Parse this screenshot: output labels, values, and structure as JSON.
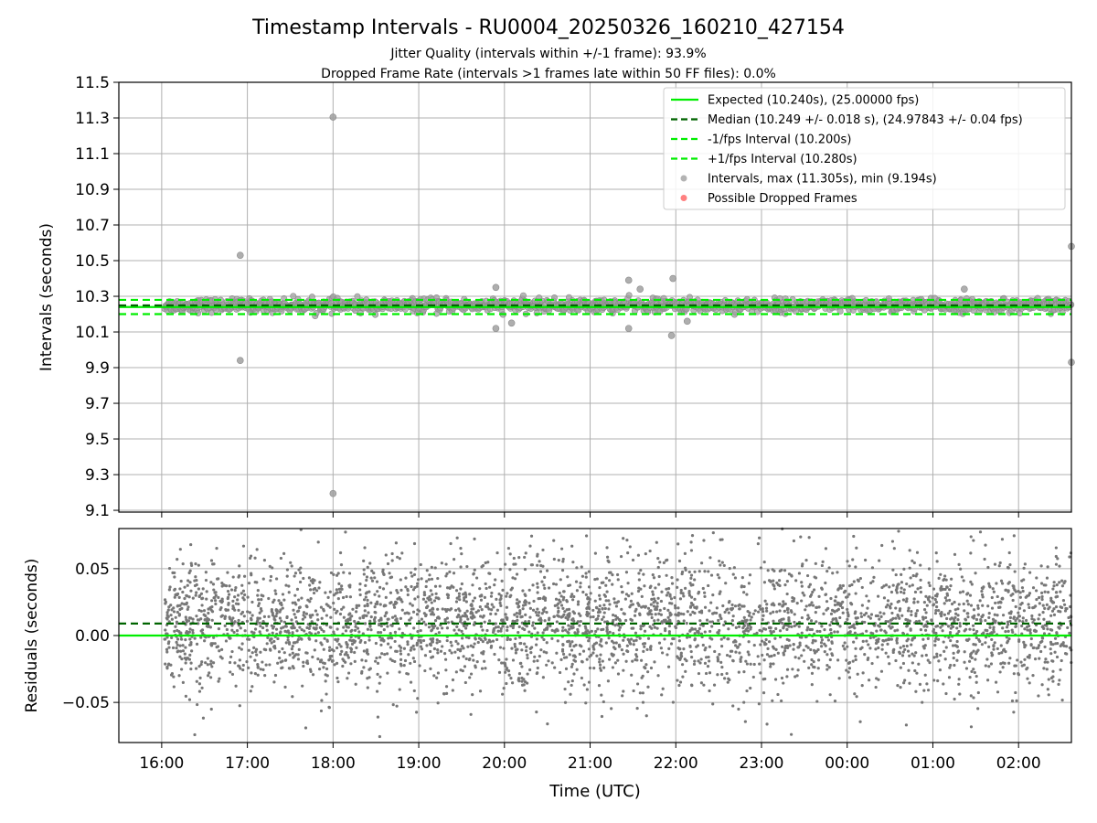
{
  "chart_data": [
    {
      "type": "scatter",
      "title": "Timestamp Intervals - RU0004_20250326_160210_427154",
      "subtitle_lines": [
        "Jitter Quality (intervals within +/-1 frame): 93.9%",
        "Dropped Frame Rate (intervals >1 frames late within 50 FF files): 0.0%"
      ],
      "ylabel": "Intervals (seconds)",
      "xlabel": "",
      "xlim": [
        "15:30",
        "02:37"
      ],
      "ylim": [
        9.09,
        11.5
      ],
      "yticks": [
        9.1,
        9.3,
        9.5,
        9.7,
        9.9,
        10.1,
        10.3,
        10.5,
        10.7,
        10.9,
        11.1,
        11.3,
        11.5
      ],
      "ytick_labels": [
        "9.1",
        "9.3",
        "9.5",
        "9.7",
        "9.9",
        "10.1",
        "10.3",
        "10.5",
        "10.7",
        "10.9",
        "11.1",
        "11.3",
        "11.5"
      ],
      "grid": true,
      "legend_position": "top-right",
      "reference_lines": [
        {
          "name": "Expected (10.240s), (25.00000 fps)",
          "value": 10.24,
          "color": "#00ee00",
          "style": "solid"
        },
        {
          "name": "Median (10.249 +/- 0.018 s), (24.97843 +/- 0.04 fps)",
          "value": 10.249,
          "color": "#006400",
          "style": "dashed"
        },
        {
          "name": "-1/fps Interval (10.200s)",
          "value": 10.2,
          "color": "#00ee00",
          "style": "dashed"
        },
        {
          "name": "+1/fps Interval (10.280s)",
          "value": 10.28,
          "color": "#00ee00",
          "style": "dashed"
        }
      ],
      "series": [
        {
          "name": "Intervals, max (11.305s), min (9.194s)",
          "color": "#a0a0a0",
          "max": 11.305,
          "min": 9.194,
          "typical_range": [
            10.2,
            10.3
          ],
          "outliers": [
            {
              "x": "16:55",
              "y": 10.53
            },
            {
              "x": "16:55",
              "y": 9.94
            },
            {
              "x": "18:00",
              "y": 11.305
            },
            {
              "x": "18:00",
              "y": 9.194
            },
            {
              "x": "19:54",
              "y": 10.35
            },
            {
              "x": "19:54",
              "y": 10.12
            },
            {
              "x": "20:05",
              "y": 10.15
            },
            {
              "x": "21:27",
              "y": 10.39
            },
            {
              "x": "21:27",
              "y": 10.12
            },
            {
              "x": "21:35",
              "y": 10.34
            },
            {
              "x": "21:58",
              "y": 10.4
            },
            {
              "x": "21:57",
              "y": 10.08
            },
            {
              "x": "22:08",
              "y": 10.16
            },
            {
              "x": "01:22",
              "y": 10.34
            },
            {
              "x": "02:37",
              "y": 10.58
            },
            {
              "x": "02:37",
              "y": 9.93
            }
          ]
        },
        {
          "name": "Possible Dropped Frames",
          "color": "#ff6060",
          "values": []
        }
      ]
    },
    {
      "type": "scatter",
      "ylabel": "Residuals (seconds)",
      "xlabel": "Time (UTC)",
      "xlim": [
        "15:30",
        "02:37"
      ],
      "ylim": [
        -0.08,
        0.08
      ],
      "yticks": [
        -0.05,
        0.0,
        0.05
      ],
      "ytick_labels": [
        "−0.05",
        "0.00",
        "0.05"
      ],
      "xticks": [
        "16:00",
        "17:00",
        "18:00",
        "19:00",
        "20:00",
        "21:00",
        "22:00",
        "23:00",
        "00:00",
        "01:00",
        "02:00"
      ],
      "grid": true,
      "reference_lines": [
        {
          "value": 0.0,
          "color": "#00ee00",
          "style": "solid"
        },
        {
          "value": 0.009,
          "color": "#006400",
          "style": "dashed"
        }
      ],
      "series": [
        {
          "color": "#777777",
          "x_range": [
            "16:02",
            "02:37"
          ],
          "y_center": 0.009,
          "y_spread_sd": 0.025,
          "point_count_approx": 3800
        }
      ]
    }
  ],
  "colors": {
    "expected": "#00ee00",
    "median": "#006400",
    "points": "#a0a0a0",
    "residual_points": "#777777",
    "dropped": "#ff6060"
  }
}
